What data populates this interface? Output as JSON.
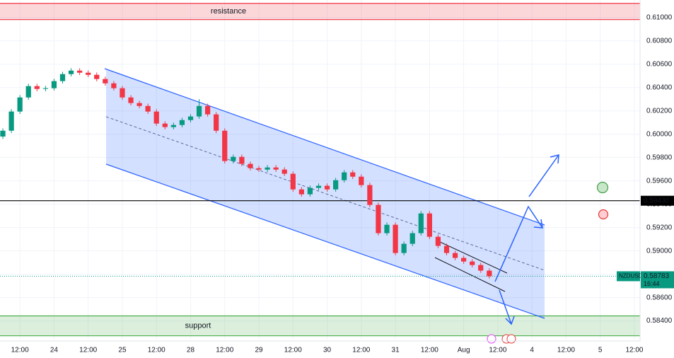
{
  "chart_data": {
    "type": "candlestick",
    "symbol": "NZDUSD",
    "last_price": 0.58783,
    "countdown": "16:44",
    "up_color": "#089981",
    "down_color": "#f23645",
    "x": [
      -18,
      -15,
      -12,
      -9,
      -6,
      -3,
      0,
      3,
      6,
      9,
      12,
      15,
      18,
      21,
      24,
      27,
      30,
      33,
      36,
      39,
      42,
      45,
      48,
      51,
      54,
      57,
      60,
      63,
      66,
      69,
      72,
      75,
      78,
      81,
      84,
      87,
      90,
      93,
      96,
      99,
      102,
      105,
      108,
      111,
      114,
      117,
      120,
      123,
      126,
      129,
      132,
      135,
      138,
      141,
      144,
      147,
      150,
      153
    ],
    "open": [
      0.5998,
      0.6003,
      0.60194,
      0.60315,
      0.60412,
      0.60388,
      0.60394,
      0.60455,
      0.60515,
      0.60545,
      0.60527,
      0.60509,
      0.60473,
      0.60436,
      0.60394,
      0.60315,
      0.60267,
      0.60242,
      0.60194,
      0.60091,
      0.60061,
      0.60079,
      0.60121,
      0.60152,
      0.60242,
      0.6017,
      0.6003,
      0.5977,
      0.59806,
      0.59746,
      0.59709,
      0.59697,
      0.59715,
      0.59697,
      0.59661,
      0.59527,
      0.59485,
      0.5954,
      0.59558,
      0.59527,
      0.59606,
      0.59673,
      0.59636,
      0.59564,
      0.59394,
      0.59152,
      0.59224,
      0.58982,
      0.59061,
      0.59152,
      0.59321,
      0.59121,
      0.59043,
      0.58982,
      0.5894,
      0.58909,
      0.58879,
      0.58831
    ],
    "high": [
      0.6005,
      0.60214,
      0.60335,
      0.60432,
      0.60432,
      0.60414,
      0.60475,
      0.60535,
      0.60565,
      0.60565,
      0.60547,
      0.60529,
      0.60493,
      0.60456,
      0.60414,
      0.60335,
      0.60287,
      0.60262,
      0.60214,
      0.60111,
      0.60099,
      0.60141,
      0.60172,
      0.603,
      0.60262,
      0.6019,
      0.6005,
      0.59826,
      0.59826,
      0.59766,
      0.59729,
      0.59735,
      0.59735,
      0.59717,
      0.59681,
      0.59547,
      0.5956,
      0.59578,
      0.59578,
      0.59626,
      0.59693,
      0.59693,
      0.59656,
      0.59584,
      0.59414,
      0.59244,
      0.59244,
      0.59081,
      0.59172,
      0.59341,
      0.59341,
      0.59141,
      0.59063,
      0.59002,
      0.5896,
      0.58929,
      0.58899,
      0.58851
    ],
    "low": [
      0.5996,
      0.6001,
      0.60174,
      0.60295,
      0.60368,
      0.60368,
      0.60374,
      0.60435,
      0.60495,
      0.60507,
      0.60489,
      0.60453,
      0.60416,
      0.60374,
      0.60295,
      0.60247,
      0.60222,
      0.60174,
      0.60071,
      0.60041,
      0.60041,
      0.60059,
      0.60101,
      0.60132,
      0.6015,
      0.6001,
      0.5975,
      0.5975,
      0.59726,
      0.59689,
      0.59677,
      0.59677,
      0.59677,
      0.59641,
      0.59507,
      0.59465,
      0.59465,
      0.5952,
      0.59507,
      0.59507,
      0.59586,
      0.59616,
      0.59544,
      0.59374,
      0.59132,
      0.59132,
      0.58962,
      0.58962,
      0.59041,
      0.59132,
      0.59101,
      0.59023,
      0.58962,
      0.5892,
      0.58889,
      0.58859,
      0.58811,
      0.58763
    ],
    "close": [
      0.6003,
      0.60194,
      0.60315,
      0.60412,
      0.60388,
      0.60394,
      0.60455,
      0.60515,
      0.60545,
      0.60527,
      0.60509,
      0.60473,
      0.60436,
      0.60394,
      0.60315,
      0.60267,
      0.60242,
      0.60194,
      0.60091,
      0.60061,
      0.60079,
      0.60121,
      0.60152,
      0.60242,
      0.6017,
      0.6003,
      0.5977,
      0.59806,
      0.59746,
      0.59709,
      0.59697,
      0.59715,
      0.59697,
      0.59661,
      0.59527,
      0.59485,
      0.5954,
      0.59558,
      0.59527,
      0.59606,
      0.59673,
      0.59636,
      0.59564,
      0.59394,
      0.59152,
      0.59224,
      0.58982,
      0.59061,
      0.59152,
      0.59321,
      0.59121,
      0.59043,
      0.58982,
      0.5894,
      0.58909,
      0.58879,
      0.58831,
      0.58783
    ],
    "xlim": [
      -19,
      206
    ],
    "ylim": [
      0.5824,
      0.6115
    ],
    "xticks": [
      {
        "value": -12,
        "label": "12:00"
      },
      {
        "value": 0,
        "label": "24"
      },
      {
        "value": 12,
        "label": "12:00"
      },
      {
        "value": 24,
        "label": "25"
      },
      {
        "value": 36,
        "label": "12:00"
      },
      {
        "value": 48,
        "label": "28"
      },
      {
        "value": 60,
        "label": "12:00"
      },
      {
        "value": 72,
        "label": "29"
      },
      {
        "value": 84,
        "label": "12:00"
      },
      {
        "value": 96,
        "label": "30"
      },
      {
        "value": 108,
        "label": "12:00"
      },
      {
        "value": 120,
        "label": "31"
      },
      {
        "value": 132,
        "label": "12:00"
      },
      {
        "value": 144,
        "label": "Aug"
      },
      {
        "value": 156,
        "label": "12:00"
      },
      {
        "value": 168,
        "label": "4"
      },
      {
        "value": 180,
        "label": "12:00"
      },
      {
        "value": 192,
        "label": "5"
      },
      {
        "value": 204,
        "label": "12:00"
      }
    ],
    "yticks": [
      {
        "value": 0.584,
        "label": "0.58400"
      },
      {
        "value": 0.586,
        "label": "0.58600"
      },
      {
        "value": 0.588,
        "label": "0.58800"
      },
      {
        "value": 0.59,
        "label": "0.59000"
      },
      {
        "value": 0.592,
        "label": "0.59200"
      },
      {
        "value": 0.594,
        "label": "0.59400"
      },
      {
        "value": 0.596,
        "label": "0.59600"
      },
      {
        "value": 0.598,
        "label": "0.59800"
      },
      {
        "value": 0.6,
        "label": "0.60000"
      },
      {
        "value": 0.602,
        "label": "0.60200"
      },
      {
        "value": 0.604,
        "label": "0.60400"
      },
      {
        "value": 0.606,
        "label": "0.60600"
      },
      {
        "value": 0.608,
        "label": "0.60800"
      },
      {
        "value": 0.61,
        "label": "0.61000"
      }
    ],
    "grid": true,
    "zones": [
      {
        "label": "resistance",
        "from": 0.60982,
        "to": 0.61121,
        "color": "#f23645"
      },
      {
        "label": "support",
        "from": 0.58273,
        "to": 0.58443,
        "color": "#4caf50"
      }
    ],
    "hline": {
      "value": 0.5943,
      "value_label": "0.59430"
    }
  }
}
